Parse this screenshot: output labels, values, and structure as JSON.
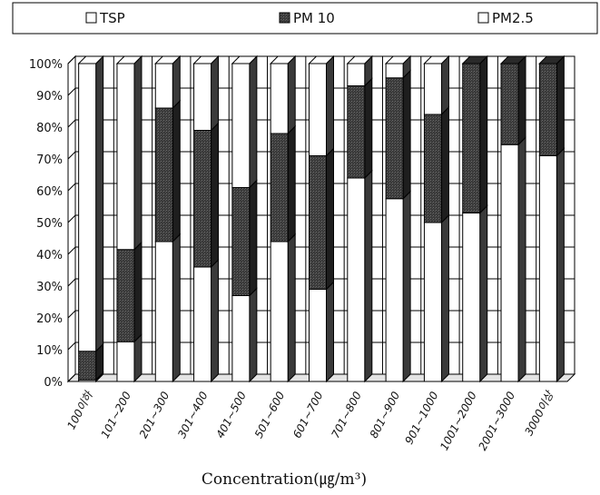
{
  "chart_data": {
    "type": "bar",
    "stacked": true,
    "normalized": true,
    "style": "3d-stacked-column",
    "title": "",
    "xlabel": "Concentration(㎍/m³)",
    "ylabel": "",
    "ylim": [
      0,
      100
    ],
    "y_ticks": [
      "0%",
      "10%",
      "20%",
      "30%",
      "40%",
      "50%",
      "60%",
      "70%",
      "80%",
      "90%",
      "100%"
    ],
    "grid": true,
    "legend_position": "top",
    "categories": [
      "100이하",
      "101~200",
      "201~300",
      "301~400",
      "401~500",
      "501~600",
      "601~700",
      "701~800",
      "801~900",
      "901~1000",
      "1001~2000",
      "2001~3000",
      "3000이상"
    ],
    "series": [
      {
        "name": "TSP",
        "fill": "#ffffff",
        "values": [
          0.5,
          12.5,
          44,
          36,
          27,
          44,
          29,
          64,
          57.5,
          50,
          53,
          74.5,
          71
        ]
      },
      {
        "name": "PM 10",
        "fill": "#3d3d3d",
        "values": [
          9,
          29,
          42,
          43,
          34,
          34,
          42,
          29,
          38,
          34,
          47,
          25.5,
          29
        ]
      },
      {
        "name": "PM2.5",
        "fill": "#ffffff",
        "values": [
          90.5,
          58.5,
          14,
          21,
          39,
          22,
          29,
          7,
          4.5,
          16,
          0,
          0,
          0
        ]
      }
    ]
  }
}
